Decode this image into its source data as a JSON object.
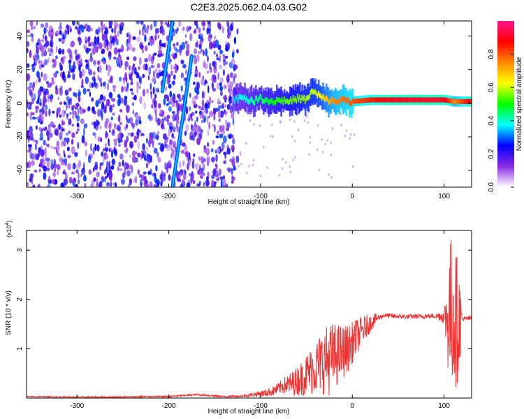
{
  "title": "C2E3.2025.062.04.03.G02",
  "chart_data": [
    {
      "type": "heatmap",
      "xlabel": "Height of straight line (km)",
      "ylabel": "Frequency (Hz)",
      "xlim": [
        -355,
        130
      ],
      "ylim": [
        -50,
        49
      ],
      "xticks": [
        -300,
        -200,
        -100,
        0,
        100
      ],
      "yticks": [
        -40,
        -20,
        0,
        20,
        40
      ],
      "colorbar": {
        "label": "Normalized spectral amplitude",
        "range": [
          0,
          1
        ],
        "ticks": [
          0.0,
          0.2,
          0.4,
          0.6,
          0.8
        ],
        "tick_labels": [
          "0.0",
          "0.2",
          "0.4",
          "0.6",
          "0.8"
        ],
        "colors": [
          "#ffffff",
          "#8a2be2",
          "#0000ff",
          "#00ffff",
          "#00ff00",
          "#ffff00",
          "#ff8800",
          "#ff0000",
          "#ff1493"
        ]
      },
      "features": {
        "noise_region_km": [
          -355,
          -125
        ],
        "noise_amplitude": 0.25,
        "diagonal_streaks": [
          {
            "x_start": -207,
            "y_start": 7,
            "x_end": -196,
            "y_end": 49,
            "amplitude": 0.2
          },
          {
            "x_start": -196,
            "y_start": -50,
            "x_end": -175,
            "y_end": 28,
            "amplitude": 0.25
          }
        ],
        "carrier_line": {
          "x_range": [
            -130,
            130
          ],
          "frequency_hz": [
            [
              -130,
              2
            ],
            [
              -120,
              4
            ],
            [
              -110,
              1
            ],
            [
              -100,
              3
            ],
            [
              -90,
              1
            ],
            [
              -80,
              2
            ],
            [
              -70,
              1
            ],
            [
              -60,
              3
            ],
            [
              -50,
              2
            ],
            [
              -45,
              7
            ],
            [
              -38,
              5
            ],
            [
              -30,
              2
            ],
            [
              -20,
              1
            ],
            [
              -10,
              2
            ],
            [
              0,
              1
            ],
            [
              20,
              2
            ],
            [
              60,
              2
            ],
            [
              100,
              2
            ],
            [
              110,
              1
            ],
            [
              120,
              1
            ],
            [
              130,
              1
            ]
          ],
          "amplitude": [
            [
              -130,
              0.35
            ],
            [
              -100,
              0.45
            ],
            [
              -70,
              0.55
            ],
            [
              -40,
              0.6
            ],
            [
              -20,
              0.75
            ],
            [
              0,
              0.8
            ],
            [
              40,
              0.9
            ],
            [
              80,
              0.92
            ],
            [
              100,
              0.9
            ],
            [
              110,
              0.75
            ],
            [
              130,
              0.9
            ]
          ]
        }
      }
    },
    {
      "type": "line",
      "xlabel": "Height of straight line (km)",
      "ylabel": "SNR (10 * v/v)",
      "y_multiplier": "(x10",
      "y_multiplier_exp": "4",
      "y_multiplier_close": ")",
      "xlim": [
        -355,
        130
      ],
      "ylim": [
        0,
        3.4
      ],
      "xticks": [
        -300,
        -200,
        -100,
        0,
        100
      ],
      "yticks": [
        1,
        2,
        3
      ],
      "series": [
        {
          "color": "#ee3333",
          "envelope": [
            [
              -355,
              0.03
            ],
            [
              -300,
              0.02
            ],
            [
              -250,
              0.02
            ],
            [
              -220,
              0.03
            ],
            [
              -200,
              0.03
            ],
            [
              -185,
              0.05
            ],
            [
              -170,
              0.07
            ],
            [
              -155,
              0.05
            ],
            [
              -140,
              0.03
            ],
            [
              -120,
              0.04
            ],
            [
              -105,
              0.08
            ],
            [
              -95,
              0.1
            ],
            [
              -85,
              0.15
            ],
            [
              -75,
              0.25
            ],
            [
              -65,
              0.3
            ],
            [
              -55,
              0.4
            ],
            [
              -45,
              0.55
            ],
            [
              -35,
              0.7
            ],
            [
              -25,
              0.8
            ],
            [
              -15,
              0.9
            ],
            [
              -5,
              1.0
            ],
            [
              5,
              1.25
            ],
            [
              15,
              1.45
            ],
            [
              25,
              1.6
            ],
            [
              35,
              1.68
            ],
            [
              45,
              1.66
            ],
            [
              60,
              1.65
            ],
            [
              80,
              1.66
            ],
            [
              95,
              1.67
            ],
            [
              105,
              1.62
            ],
            [
              108,
              1.8
            ],
            [
              112,
              1.6
            ],
            [
              118,
              1.6
            ],
            [
              130,
              1.62
            ]
          ],
          "fluctuation": [
            [
              -355,
              0.01
            ],
            [
              -120,
              0.02
            ],
            [
              -100,
              0.06
            ],
            [
              -80,
              0.12
            ],
            [
              -60,
              0.3
            ],
            [
              -40,
              0.55
            ],
            [
              -25,
              0.75
            ],
            [
              -10,
              0.55
            ],
            [
              10,
              0.3
            ],
            [
              30,
              0.05
            ],
            [
              90,
              0.05
            ],
            [
              100,
              0.15
            ],
            [
              106,
              1.5
            ],
            [
              110,
              1.6
            ],
            [
              116,
              1.2
            ],
            [
              120,
              0.05
            ],
            [
              130,
              0.05
            ]
          ]
        }
      ]
    }
  ]
}
